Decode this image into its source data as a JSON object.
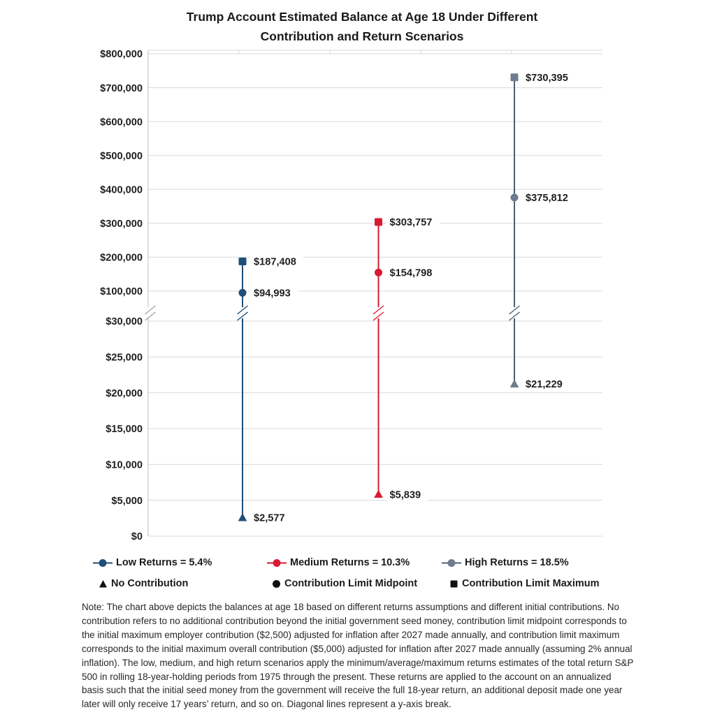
{
  "title": {
    "line1": "Trump Account Estimated Balance at Age 18 Under Different",
    "line2": "Contribution and Return Scenarios"
  },
  "chart_data": {
    "type": "scatter",
    "title": "Trump Account Estimated Balance at Age 18 Under Different Contribution and Return Scenarios",
    "y_axis": {
      "broken_axis": true,
      "upper_ticks": [
        800000,
        700000,
        600000,
        500000,
        400000,
        300000,
        200000,
        100000
      ],
      "lower_ticks": [
        30000,
        25000,
        20000,
        15000,
        10000,
        5000,
        0
      ],
      "tick_prefix": "$",
      "break_note": "Diagonal lines represent a y-axis break"
    },
    "colors": {
      "grid": "#d9d9d9",
      "axis": "#bfbfbf",
      "axis_break": "#a6a6a6",
      "label_text": "#1f1f1f"
    },
    "series": [
      {
        "name": "Low Returns = 5.4%",
        "line_color": "#1f4e79",
        "marker_color": "#1f4e79",
        "points": [
          {
            "contribution": "No Contribution",
            "shape": "triangle",
            "value": 2577,
            "label": "$2,577"
          },
          {
            "contribution": "Contribution Limit Midpoint",
            "shape": "circle",
            "value": 94993,
            "label": "$94,993"
          },
          {
            "contribution": "Contribution Limit Maximum",
            "shape": "square",
            "value": 187408,
            "label": "$187,408"
          }
        ]
      },
      {
        "name": "Medium Returns = 10.3%",
        "line_color": "#d91a32",
        "marker_color": "#d91a32",
        "points": [
          {
            "contribution": "No Contribution",
            "shape": "triangle",
            "value": 5839,
            "label": "$5,839"
          },
          {
            "contribution": "Contribution Limit Midpoint",
            "shape": "circle",
            "value": 154798,
            "label": "$154,798"
          },
          {
            "contribution": "Contribution Limit Maximum",
            "shape": "square",
            "value": 303757,
            "label": "$303,757"
          }
        ]
      },
      {
        "name": "High Returns = 18.5%",
        "line_color": "#4d5f73",
        "marker_color": "#6d7c8e",
        "points": [
          {
            "contribution": "No Contribution",
            "shape": "triangle",
            "value": 21229,
            "label": "$21,229"
          },
          {
            "contribution": "Contribution Limit Midpoint",
            "shape": "circle",
            "value": 375812,
            "label": "$375,812"
          },
          {
            "contribution": "Contribution Limit Maximum",
            "shape": "square",
            "value": 730395,
            "label": "$730,395"
          }
        ]
      }
    ],
    "markers": [
      {
        "shape": "triangle",
        "label": "No Contribution"
      },
      {
        "shape": "circle",
        "label": "Contribution Limit Midpoint"
      },
      {
        "shape": "square",
        "label": "Contribution Limit Maximum"
      }
    ]
  },
  "note": {
    "text": "Note: The chart above depicts the balances at age 18 based on different returns assumptions and different initial contributions. No contribution refers to no additional contribution beyond the initial government seed money, contribution limit midpoint corresponds to the initial maximum employer contribution ($2,500) adjusted for inflation after 2027 made annually, and contribution limit maximum corresponds to the initial maximum overall contribution ($5,000) adjusted for inflation after 2027 made annually (assuming 2% annual inflation). The low, medium, and high return scenarios apply the minimum/average/maximum returns estimates of the total return S&P 500 in rolling 18-year-holding periods from 1975 through the present. These returns are applied to the account on an annualized basis such that the initial seed money from the government will receive the full 18-year return, an additional deposit made one year later will only receive 17 years’ return, and so on. Diagonal lines represent a y-axis break."
  }
}
